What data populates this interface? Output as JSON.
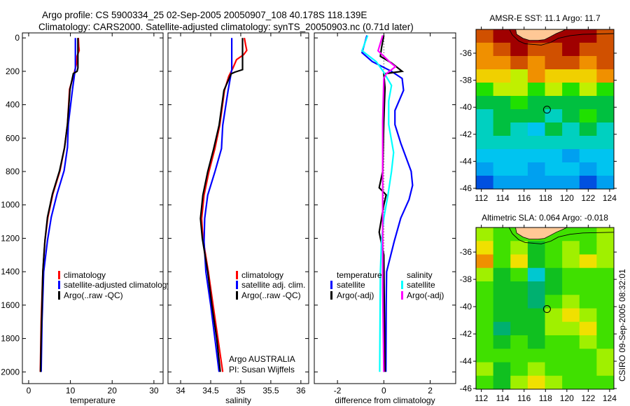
{
  "header": {
    "title_line1": "Argo profile: CS 5900334_25 02-Sep-2005 20050907_108 40.178S 118.139E",
    "title_line2": "Climatology: CARS2000. Satellite-adjusted climatology: synTS_20050903.nc (0.71d later)"
  },
  "footer": {
    "agency": "Argo AUSTRALIA",
    "pi": "PI: Susan Wijffels",
    "stamp": "CSIRO 09-Sep-2005 08:32:01"
  },
  "colors": {
    "climatology": "#ff0000",
    "satellite": "#0000ff",
    "argo": "#000000",
    "sal_satellite": "#00ffff",
    "sal_argo": "#ff00ff"
  },
  "chart_data": [
    {
      "type": "line",
      "xlabel": "temperature",
      "xlim": [
        -1.5,
        32.2
      ],
      "ylim": [
        2070,
        -30
      ],
      "xticks": [
        0,
        10,
        20,
        30
      ],
      "yticks": [
        0,
        200,
        400,
        600,
        800,
        1000,
        1200,
        1400,
        1600,
        1800,
        2000
      ],
      "legend": [
        "climatology",
        "satellite-adjusted climatology",
        "Argo(..raw -QC)"
      ],
      "series": [
        {
          "name": "climatology",
          "color": "#ff0000",
          "depth": [
            0,
            50,
            75,
            110,
            150,
            200,
            307,
            516,
            656,
            795,
            935,
            1074,
            1214,
            1400,
            1700,
            2000
          ],
          "values": [
            11.9,
            12.0,
            12.1,
            11.6,
            11.5,
            11.0,
            9.8,
            9.3,
            8.6,
            7.5,
            5.8,
            4.6,
            3.9,
            3.4,
            3.0,
            2.8
          ]
        },
        {
          "name": "satellite-adjusted climatology",
          "color": "#0000ff",
          "depth": [
            0,
            180,
            307,
            516,
            656,
            795,
            935,
            1074,
            1214,
            1400,
            1700,
            2000
          ],
          "values": [
            11.2,
            11.2,
            10.5,
            9.5,
            9.3,
            8.5,
            6.8,
            5.4,
            4.5,
            3.6,
            3.2,
            3.0
          ]
        },
        {
          "name": "Argo(..raw -QC)",
          "color": "#000000",
          "depth": [
            0,
            180,
            200,
            213,
            307,
            516,
            656,
            795,
            935,
            1074,
            1214,
            1283,
            1400,
            1600,
            1800,
            2000
          ],
          "values": [
            11.8,
            11.8,
            11.6,
            10.7,
            9.9,
            9.3,
            8.6,
            7.4,
            5.7,
            4.5,
            3.9,
            3.7,
            3.4,
            3.2,
            3.0,
            2.85
          ]
        }
      ]
    },
    {
      "type": "line",
      "xlabel": "salinity",
      "xlim": [
        33.79,
        36.13
      ],
      "ylim": [
        2070,
        -30
      ],
      "xticks": [
        34,
        34.5,
        35,
        35.5,
        36
      ],
      "legend": [
        "climatology",
        "satellite adj. clim.",
        "Argo(..raw -QC)"
      ],
      "series": [
        {
          "name": "climatology",
          "color": "#ff0000",
          "depth": [
            0,
            40,
            75,
            100,
            130,
            180,
            230,
            314,
            523,
            663,
            802,
            942,
            1081,
            1200,
            1400,
            1600,
            1800,
            2000
          ],
          "values": [
            35.06,
            35.08,
            35.1,
            35.05,
            34.93,
            34.87,
            34.8,
            34.73,
            34.65,
            34.57,
            34.47,
            34.39,
            34.35,
            34.37,
            34.46,
            34.54,
            34.62,
            34.7
          ]
        },
        {
          "name": "satellite adj. clim.",
          "color": "#0000ff",
          "depth": [
            0,
            190,
            314,
            523,
            663,
            802,
            942,
            1081,
            1220,
            1400,
            1600,
            1800,
            2000
          ],
          "values": [
            34.85,
            34.85,
            34.79,
            34.7,
            34.68,
            34.57,
            34.45,
            34.4,
            34.39,
            34.42,
            34.5,
            34.57,
            34.64
          ]
        },
        {
          "name": "Argo(..raw -QC)",
          "color": "#000000",
          "depth": [
            0,
            190,
            205,
            215,
            314,
            523,
            663,
            802,
            942,
            1081,
            1200,
            1400,
            1600,
            1800,
            2000
          ],
          "values": [
            35.03,
            35.03,
            34.9,
            34.84,
            34.72,
            34.64,
            34.55,
            34.45,
            34.37,
            34.33,
            34.36,
            34.45,
            34.52,
            34.6,
            34.66
          ]
        }
      ]
    },
    {
      "type": "line",
      "xlabel": "difference from climatology",
      "xlim": [
        -3.0,
        3.1
      ],
      "ylim": [
        2070,
        -30
      ],
      "xticks": [
        -2,
        0,
        2
      ],
      "legend_headers": [
        "temperature",
        "salinity"
      ],
      "legend": [
        "satellite",
        "Argo(-adj)",
        "satellite",
        "Argo(-adj)"
      ],
      "series": [
        {
          "name": "temperature satellite",
          "color": "#0000ff",
          "depth": [
            -15,
            88,
            142,
            200,
            243,
            314,
            435,
            519,
            630,
            799,
            883,
            967,
            1079,
            1218,
            1400,
            1600,
            2000
          ],
          "values": [
            -0.73,
            -0.94,
            -0.5,
            0.33,
            0.79,
            0.85,
            0.48,
            0.48,
            0.73,
            1.18,
            1.24,
            1.09,
            0.73,
            0.45,
            0.12,
            0.1,
            0.09
          ]
        },
        {
          "name": "temperature Argo(-adj)",
          "color": "#000000",
          "depth": [
            -15,
            60,
            110,
            150,
            200,
            215,
            300,
            500,
            800,
            897,
            940,
            1000,
            1163,
            1300,
            2000
          ],
          "values": [
            0,
            -0.1,
            -0.15,
            0.33,
            0.79,
            0,
            0.05,
            0,
            -0.05,
            -0.2,
            0.1,
            0,
            -0.2,
            0,
            0.05
          ]
        },
        {
          "name": "salinity satellite",
          "color": "#00ffff",
          "depth": [
            -15,
            77,
            142,
            200,
            285,
            377,
            519,
            686,
            799,
            939,
            1079,
            1218,
            1400,
            2000
          ],
          "values": [
            -0.7,
            -0.94,
            -0.33,
            -0.03,
            0.33,
            0.21,
            0.21,
            0.42,
            0.33,
            0.18,
            0,
            -0.1,
            -0.15,
            -0.18
          ]
        },
        {
          "name": "salinity Argo(-adj)",
          "color": "#ff00ff",
          "depth": [
            -15,
            77,
            150,
            172,
            215,
            243,
            500,
            1000,
            1500,
            2000
          ],
          "values": [
            -0.05,
            -0.25,
            0.3,
            0.5,
            0.1,
            0,
            -0.05,
            -0.05,
            -0.05,
            0
          ]
        }
      ]
    },
    {
      "type": "heatmap",
      "title": "AMSR-E SST: 11.1 Argo: 11.7",
      "lonlim": [
        111.5,
        124.4
      ],
      "latlim": [
        -46.05,
        -34.24
      ],
      "xticks": [
        112,
        114,
        116,
        118,
        120,
        122,
        124
      ],
      "yticks": [
        -36,
        -38,
        -40,
        -42,
        -44,
        -46
      ],
      "palette": [
        "#0050e0",
        "#00a0f0",
        "#00c4f0",
        "#00d0c0",
        "#00c040",
        "#20e000",
        "#c0f000",
        "#f0d000",
        "#f09000",
        "#d05000",
        "#a00000"
      ],
      "grid": [
        [
          9,
          10,
          10,
          10,
          10,
          10,
          10,
          9
        ],
        [
          8,
          9,
          10,
          9,
          9,
          10,
          9,
          9
        ],
        [
          8,
          8,
          9,
          8,
          9,
          9,
          8,
          9
        ],
        [
          7,
          7,
          6,
          8,
          7,
          7,
          7,
          8
        ],
        [
          5,
          6,
          6,
          5,
          6,
          5,
          6,
          5
        ],
        [
          4,
          4,
          5,
          4,
          4,
          4,
          4,
          4
        ],
        [
          3,
          4,
          4,
          4,
          3,
          4,
          5,
          4
        ],
        [
          3,
          4,
          3,
          2,
          4,
          3,
          4,
          3
        ],
        [
          3,
          3,
          3,
          3,
          3,
          3,
          3,
          3
        ],
        [
          2,
          2,
          2,
          2,
          2,
          1,
          2,
          2
        ],
        [
          1,
          2,
          2,
          1,
          2,
          2,
          1,
          2
        ],
        [
          0,
          1,
          1,
          1,
          1,
          1,
          0,
          1
        ]
      ],
      "argo_position": [
        118.139,
        -40.178
      ]
    },
    {
      "type": "heatmap",
      "title": "Altimetric SLA: 0.064 Argo: -0.018",
      "lonlim": [
        111.5,
        124.4
      ],
      "latlim": [
        -46.05,
        -34.2
      ],
      "xticks": [
        112,
        114,
        116,
        118,
        120,
        122,
        124
      ],
      "yticks": [
        -36,
        -38,
        -40,
        -42,
        -44,
        -46
      ],
      "palette": [
        "#00c8d0",
        "#00b070",
        "#10c020",
        "#40e000",
        "#a0f000",
        "#f0e000",
        "#f09000"
      ],
      "grid": [
        [
          4,
          3,
          3,
          3,
          3,
          3,
          3,
          4
        ],
        [
          5,
          3,
          4,
          2,
          3,
          4,
          3,
          4
        ],
        [
          6,
          3,
          5,
          2,
          3,
          4,
          5,
          4
        ],
        [
          4,
          2,
          3,
          0,
          2,
          3,
          3,
          3
        ],
        [
          3,
          2,
          2,
          1,
          2,
          3,
          3,
          3
        ],
        [
          3,
          2,
          2,
          1,
          3,
          4,
          3,
          3
        ],
        [
          3,
          2,
          2,
          2,
          4,
          5,
          4,
          3
        ],
        [
          3,
          1,
          2,
          2,
          4,
          4,
          5,
          3
        ],
        [
          3,
          2,
          3,
          2,
          3,
          3,
          4,
          3
        ],
        [
          3,
          3,
          3,
          3,
          3,
          3,
          3,
          4
        ],
        [
          4,
          2,
          3,
          4,
          3,
          3,
          3,
          4
        ],
        [
          3,
          2,
          4,
          5,
          4,
          3,
          3,
          3
        ]
      ],
      "argo_position": [
        118.139,
        -40.178
      ]
    }
  ],
  "coast": {
    "land": [
      [
        115.2,
        -34.2
      ],
      [
        115.3,
        -34.6
      ],
      [
        115.9,
        -34.9
      ],
      [
        116.5,
        -35.05
      ],
      [
        117.3,
        -35.05
      ],
      [
        117.9,
        -35.0
      ],
      [
        118.4,
        -34.8
      ],
      [
        119.0,
        -34.55
      ],
      [
        119.6,
        -34.35
      ],
      [
        120.0,
        -34.2
      ]
    ],
    "contour": [
      [
        114.6,
        -34.2
      ],
      [
        114.9,
        -34.65
      ],
      [
        115.5,
        -35.1
      ],
      [
        116.1,
        -35.3
      ],
      [
        117.6,
        -35.4
      ],
      [
        118.5,
        -35.2
      ],
      [
        119.2,
        -34.9
      ],
      [
        120.3,
        -34.7
      ],
      [
        121.5,
        -34.6
      ],
      [
        124.4,
        -34.55
      ]
    ],
    "land_color": "#ffc896"
  }
}
